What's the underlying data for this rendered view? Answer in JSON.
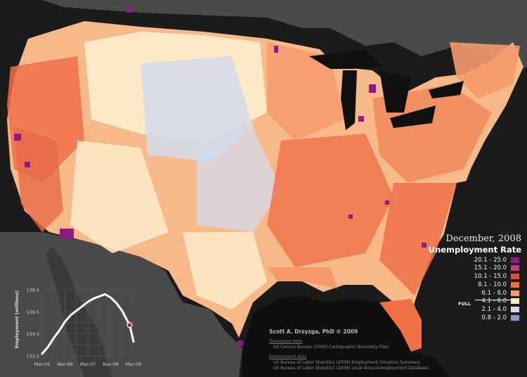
{
  "map": {
    "title": "December, 2008",
    "subtitle": "Unemployment Rate",
    "legend": [
      {
        "label": "20.1 - 25.0",
        "color": "#8f1a86"
      },
      {
        "label": "15.1 - 20.0",
        "color": "#c23a75"
      },
      {
        "label": "10.1 - 15.0",
        "color": "#de4f3e"
      },
      {
        "label": "8.1 - 10.0",
        "color": "#ef6f47"
      },
      {
        "label": "6.1 - 8.0",
        "color": "#f59a6a"
      },
      {
        "label": "4.1 - 6.0",
        "color": "#fde9c5"
      },
      {
        "label": "2.1 - 4.0",
        "color": "#d3dbec"
      },
      {
        "label": "0.8 - 2.0",
        "color": "#8a9bc6"
      }
    ],
    "full_employment_label": "FULL",
    "colors": {
      "background": "#1b1b1b",
      "land_outside": "#4a4a4a",
      "water": "#111111"
    }
  },
  "credits": {
    "author": "Scott A. Drzyzga, PhD © 2009",
    "geo_heading": "Geospatial data",
    "geo_items": [
      "US Census Bureau (2000) Cartographic Boundary Files"
    ],
    "emp_heading": "Employment data",
    "emp_items": [
      "US Bureau of Labor Statistics (2009) Employment Situation Summary",
      "US Bureau of Labor Statistics (2009) Local Area Unemployment Database"
    ]
  },
  "chart_data": {
    "type": "line",
    "title": "",
    "ylabel": "Employment (millions)",
    "xlabel": "",
    "ylim": [
      132.5,
      138.5
    ],
    "yticks": [
      "138.5",
      "136.5",
      "134.5",
      "132.5"
    ],
    "xticks": [
      "Mar-05",
      "Mar-06",
      "Mar-07",
      "Mar-08",
      "Mar-09"
    ],
    "grid": true,
    "x": [
      0,
      0.25,
      0.5,
      0.75,
      1,
      1.25,
      1.5,
      1.75,
      2,
      2.25,
      2.5,
      2.75,
      3,
      3.25,
      3.5,
      3.75,
      3.83,
      4.0
    ],
    "values": [
      132.7,
      133.3,
      134.1,
      134.8,
      135.6,
      136.2,
      136.6,
      137.0,
      137.4,
      137.7,
      137.9,
      138.1,
      137.8,
      137.3,
      136.6,
      135.6,
      135.3,
      133.8
    ],
    "highlight_index": 16,
    "highlight_color": "#c0262d"
  }
}
